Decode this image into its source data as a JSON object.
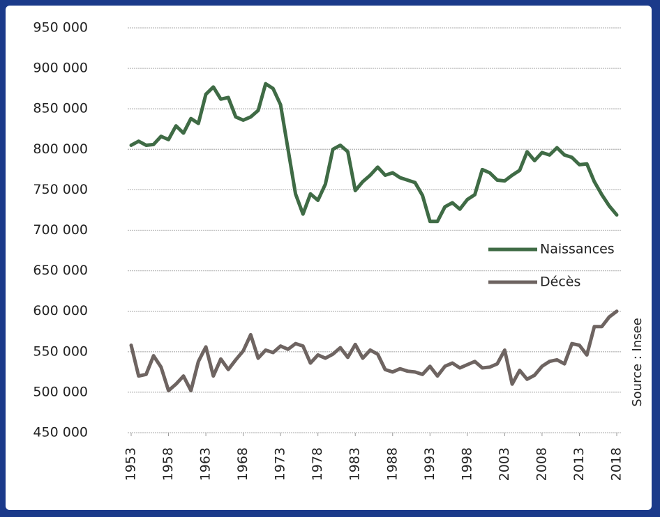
{
  "chart_data": {
    "type": "line",
    "x": [
      1953,
      1954,
      1955,
      1956,
      1957,
      1958,
      1959,
      1960,
      1961,
      1962,
      1963,
      1964,
      1965,
      1966,
      1967,
      1968,
      1969,
      1970,
      1971,
      1972,
      1973,
      1974,
      1975,
      1976,
      1977,
      1978,
      1979,
      1980,
      1981,
      1982,
      1983,
      1984,
      1985,
      1986,
      1987,
      1988,
      1989,
      1990,
      1991,
      1992,
      1993,
      1994,
      1995,
      1996,
      1997,
      1998,
      1999,
      2000,
      2001,
      2002,
      2003,
      2004,
      2005,
      2006,
      2007,
      2008,
      2009,
      2010,
      2011,
      2012,
      2013,
      2014,
      2015,
      2016,
      2017,
      2018
    ],
    "series": [
      {
        "name": "Naissances",
        "color": "#3f6b45",
        "values": [
          805000,
          810000,
          805000,
          806000,
          816000,
          812000,
          829000,
          820000,
          838000,
          832000,
          868000,
          877000,
          862000,
          864000,
          840000,
          836000,
          840000,
          848000,
          881000,
          875000,
          855000,
          800000,
          745000,
          720000,
          745000,
          737000,
          757000,
          800000,
          805000,
          797000,
          749000,
          760000,
          768000,
          778000,
          768000,
          771000,
          765000,
          762000,
          759000,
          743000,
          711000,
          711000,
          729000,
          734000,
          726000,
          738000,
          744000,
          775000,
          771000,
          762000,
          761000,
          768000,
          774000,
          797000,
          786000,
          796000,
          793000,
          802000,
          793000,
          790000,
          781000,
          782000,
          760000,
          744000,
          730000,
          719000
        ]
      },
      {
        "name": "Décès",
        "color": "#6e6461",
        "values": [
          558000,
          520000,
          522000,
          545000,
          531000,
          502000,
          510000,
          520000,
          502000,
          538000,
          556000,
          520000,
          541000,
          528000,
          540000,
          551000,
          571000,
          542000,
          552000,
          549000,
          557000,
          553000,
          560000,
          557000,
          536000,
          546000,
          542000,
          547000,
          555000,
          543000,
          559000,
          542000,
          552000,
          547000,
          528000,
          525000,
          529000,
          526000,
          525000,
          522000,
          532000,
          520000,
          532000,
          536000,
          530000,
          534000,
          538000,
          530000,
          531000,
          535000,
          552000,
          510000,
          527000,
          516000,
          521000,
          532000,
          538000,
          540000,
          535000,
          560000,
          558000,
          546000,
          581000,
          581000,
          593000,
          600000
        ]
      }
    ],
    "xlim": [
      1953,
      2018
    ],
    "xticks": [
      1953,
      1958,
      1963,
      1968,
      1973,
      1978,
      1983,
      1988,
      1993,
      1998,
      2003,
      2008,
      2013,
      2018
    ],
    "ylim": [
      450000,
      950000
    ],
    "yticks": [
      {
        "value": 450000,
        "label": "450 000"
      },
      {
        "value": 500000,
        "label": "500 000"
      },
      {
        "value": 550000,
        "label": "550 000"
      },
      {
        "value": 600000,
        "label": "600 000"
      },
      {
        "value": 650000,
        "label": "650 000"
      },
      {
        "value": 700000,
        "label": "700 000"
      },
      {
        "value": 750000,
        "label": "750 000"
      },
      {
        "value": 800000,
        "label": "800 000"
      },
      {
        "value": 850000,
        "label": "850 000"
      },
      {
        "value": 900000,
        "label": "900 000"
      },
      {
        "value": 950000,
        "label": "950 000"
      }
    ],
    "grid": true,
    "source": "Source : Insee"
  }
}
